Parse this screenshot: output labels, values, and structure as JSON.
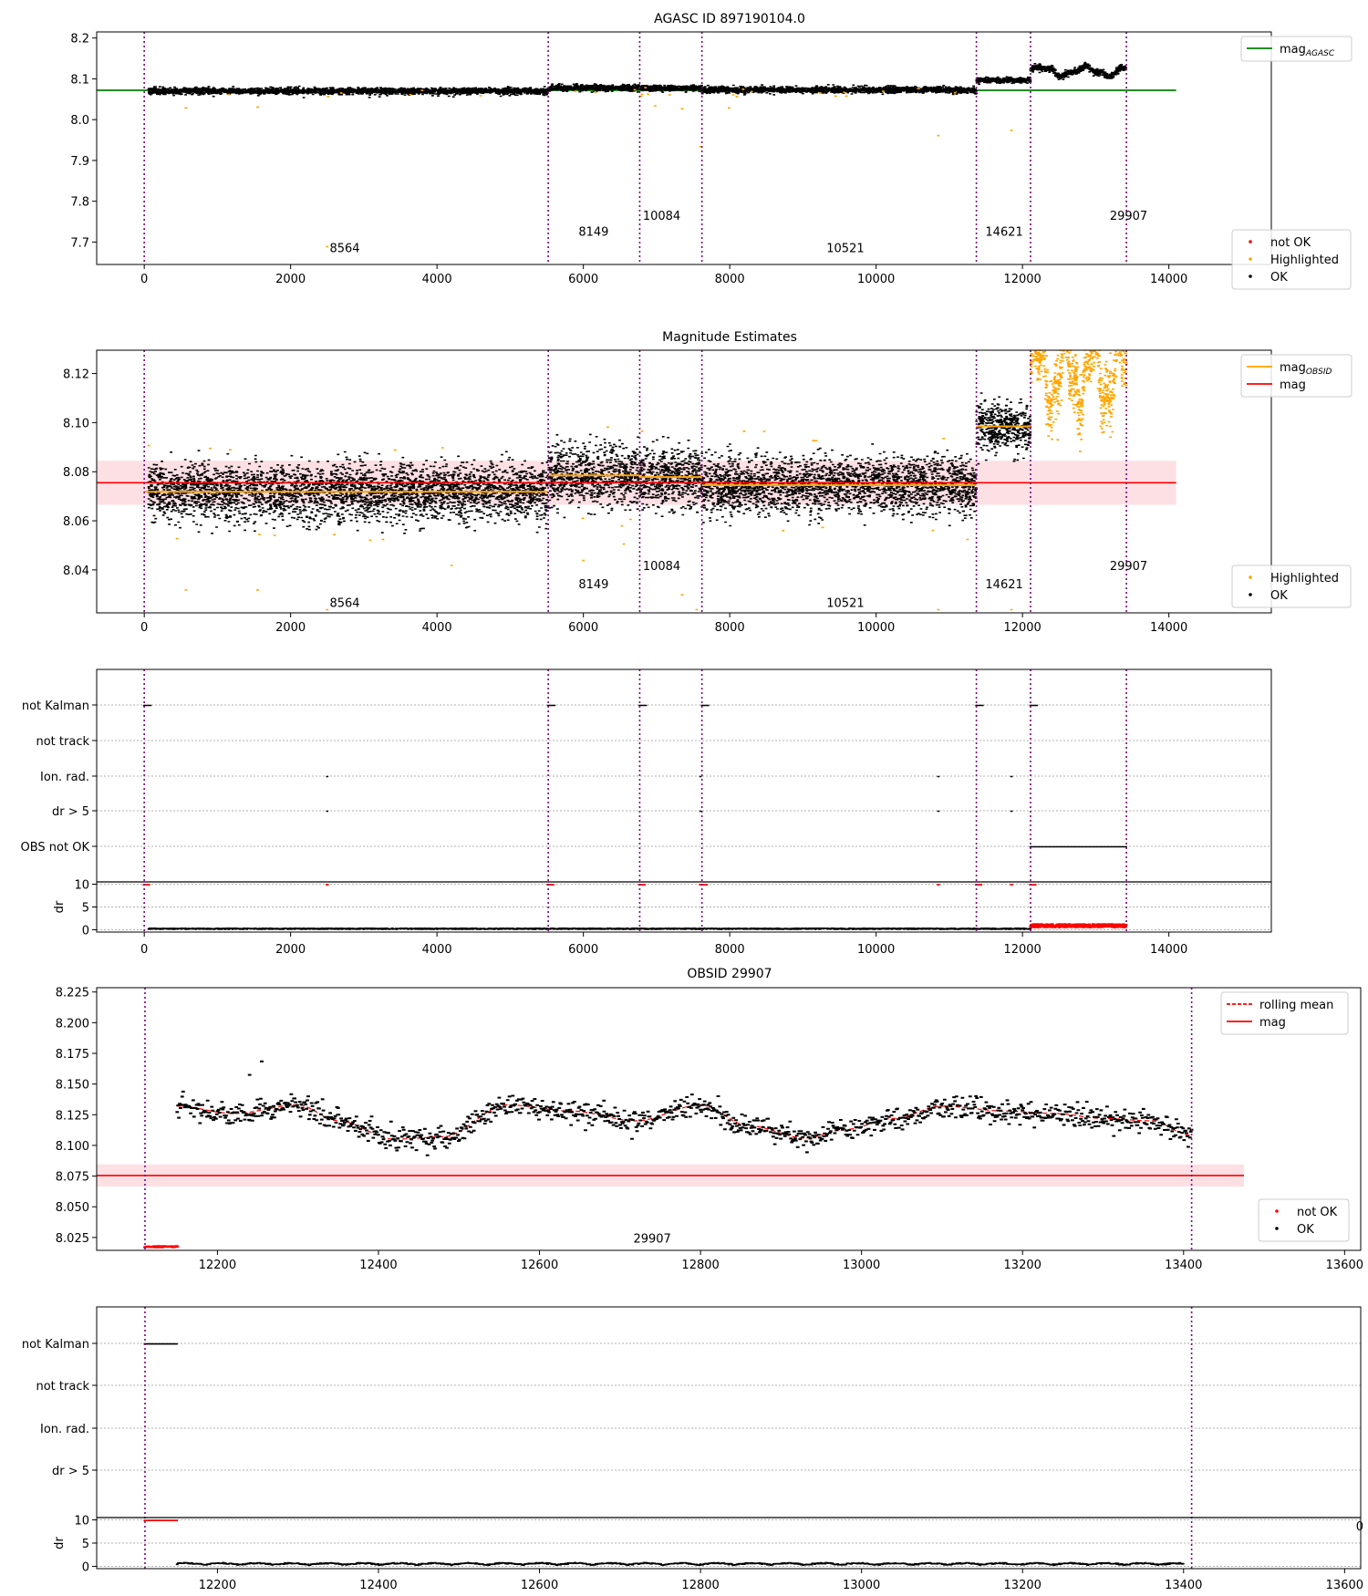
{
  "figure": {
    "panel1_title": "AGASC ID 897190104.0",
    "panel2_title": "Magnitude Estimates",
    "panel4_title": "OBSID 29907"
  },
  "colors": {
    "ok": "#000000",
    "not_ok": "#ff0000",
    "highlighted": "#ffa500",
    "agasc_line": "#008000",
    "mag_line": "#ff0000",
    "mag_band": "#fde0e4",
    "obsid_line": "#ffa500",
    "obsid_boundary": "#800080",
    "grid": "#b0b0b0"
  },
  "legends": {
    "p1": {
      "lines": [
        {
          "label": "mag",
          "sub": "AGASC",
          "color": "#008000"
        }
      ],
      "markers": [
        {
          "label": "not OK",
          "color": "#ff0000"
        },
        {
          "label": "Highlighted",
          "color": "#ffa500"
        },
        {
          "label": "OK",
          "color": "#000000"
        }
      ]
    },
    "p2": {
      "lines": [
        {
          "label": "mag",
          "sub": "OBSID",
          "color": "#ffa500"
        },
        {
          "label": "mag",
          "sub": "",
          "color": "#ff0000"
        }
      ],
      "markers": [
        {
          "label": "Highlighted",
          "color": "#ffa500"
        },
        {
          "label": "OK",
          "color": "#000000"
        }
      ]
    },
    "p4": {
      "lines": [
        {
          "label": "rolling mean",
          "sub": "",
          "color": "#ff0000",
          "dashed": true
        },
        {
          "label": "mag",
          "sub": "",
          "color": "#ff0000"
        }
      ],
      "markers": [
        {
          "label": "not OK",
          "color": "#ff0000"
        },
        {
          "label": "OK",
          "color": "#000000"
        }
      ]
    }
  },
  "chart_data": [
    {
      "id": "p1",
      "type": "scatter",
      "title": "AGASC ID 897190104.0",
      "xlim": [
        -650,
        15400
      ],
      "ylim": [
        7.645,
        8.215
      ],
      "xticks": [
        0,
        2000,
        4000,
        6000,
        8000,
        10000,
        12000,
        14000
      ],
      "yticks": [
        7.7,
        7.8,
        7.9,
        8.0,
        8.1,
        8.2
      ],
      "mag_agasc": 8.072,
      "mag_agasc_xrange": [
        -650,
        14100
      ],
      "obsid_boundaries": [
        0,
        5520,
        6770,
        7620,
        11370,
        12110,
        13420
      ],
      "obsids": [
        {
          "label": "8564",
          "x": 2740,
          "y": 7.675
        },
        {
          "label": "8149",
          "x": 6140,
          "y": 7.715
        },
        {
          "label": "10084",
          "x": 7070,
          "y": 7.755
        },
        {
          "label": "10521",
          "x": 9580,
          "y": 7.675
        },
        {
          "label": "14621",
          "x": 11750,
          "y": 7.715
        },
        {
          "label": "29907",
          "x": 13450,
          "y": 7.755
        }
      ],
      "segments": [
        {
          "x": [
            60,
            5520
          ],
          "mean": 8.071,
          "spread": 0.012
        },
        {
          "x": [
            5520,
            6770
          ],
          "mean": 8.079,
          "spread": 0.012
        },
        {
          "x": [
            6770,
            7620
          ],
          "mean": 8.078,
          "spread": 0.012
        },
        {
          "x": [
            7620,
            11370
          ],
          "mean": 8.074,
          "spread": 0.012
        },
        {
          "x": [
            11370,
            12110
          ],
          "mean": 8.098,
          "spread": 0.01
        },
        {
          "x": [
            12110,
            13420
          ],
          "mean": 8.12,
          "spread": 0.012,
          "wave": true
        }
      ],
      "highlighted_points": [
        [
          2500,
          7.69
        ],
        [
          7600,
          7.935
        ],
        [
          10850,
          7.962
        ],
        [
          11850,
          7.975
        ],
        [
          570,
          8.03
        ],
        [
          1550,
          8.032
        ],
        [
          6980,
          8.035
        ],
        [
          7350,
          8.028
        ],
        [
          7990,
          8.03
        ]
      ],
      "legend_position": "upper right / lower right"
    },
    {
      "id": "p2",
      "type": "scatter",
      "title": "Magnitude Estimates",
      "xlim": [
        -650,
        15400
      ],
      "ylim": [
        8.0225,
        8.1295
      ],
      "xticks": [
        0,
        2000,
        4000,
        6000,
        8000,
        10000,
        12000,
        14000
      ],
      "yticks": [
        8.04,
        8.06,
        8.08,
        8.1,
        8.12
      ],
      "mag": 8.0755,
      "mag_band": [
        8.0665,
        8.0845
      ],
      "mag_xrange": [
        -650,
        14100
      ],
      "mag_obsid": [
        {
          "x": [
            0,
            5520
          ],
          "value": 8.0718
        },
        {
          "x": [
            5520,
            6770
          ],
          "value": 8.0785
        },
        {
          "x": [
            6770,
            7620
          ],
          "value": 8.0778
        },
        {
          "x": [
            7620,
            11370
          ],
          "value": 8.0745
        },
        {
          "x": [
            11370,
            12110
          ],
          "value": 8.0985
        }
      ],
      "obsid_boundaries": [
        0,
        5520,
        6770,
        7620,
        11370,
        12110,
        13420
      ],
      "obsids": [
        {
          "label": "8564",
          "x": 2740,
          "y": 8.025
        },
        {
          "label": "8149",
          "x": 6140,
          "y": 8.0325
        },
        {
          "label": "10084",
          "x": 7070,
          "y": 8.04
        },
        {
          "label": "10521",
          "x": 9580,
          "y": 8.025
        },
        {
          "label": "14621",
          "x": 11750,
          "y": 8.0325
        },
        {
          "label": "29907",
          "x": 13450,
          "y": 8.04
        }
      ],
      "legend_position": "upper right / lower right"
    },
    {
      "id": "p3",
      "type": "scatter",
      "xlim": [
        -650,
        15400
      ],
      "xticks": [
        0,
        2000,
        4000,
        6000,
        8000,
        10000,
        12000,
        14000
      ],
      "flag_rows": [
        "not Kalman",
        "not track",
        "Ion. rad.",
        "dr > 5",
        "OBS not OK"
      ],
      "dr_ylabel": "dr",
      "dr_yticks": [
        0,
        5,
        10
      ],
      "dr_ylim": [
        -0.5,
        10.5
      ],
      "not_kalman_x": [
        0,
        5520,
        6770,
        7620,
        11370,
        12110
      ],
      "ion_rad_x": [
        2500,
        7600,
        10850,
        11850
      ],
      "dr5_x": [
        2500,
        7600,
        10850,
        11850
      ],
      "obs_not_ok_x": [
        12110,
        13420
      ]
    },
    {
      "id": "p4",
      "type": "scatter",
      "title": "OBSID 29907",
      "xlim": [
        12050,
        13620
      ],
      "ylim": [
        8.0145,
        8.2285
      ],
      "xticks": [
        12200,
        12400,
        12600,
        12800,
        13000,
        13200,
        13400,
        13600
      ],
      "yticks": [
        8.025,
        8.05,
        8.075,
        8.1,
        8.125,
        8.15,
        8.175,
        8.2,
        8.225
      ],
      "mag": 8.0755,
      "mag_band": [
        8.0665,
        8.0845
      ],
      "mag_xrange": [
        12050,
        13475
      ],
      "obsid_boundaries": [
        12110,
        13410
      ],
      "data_x": [
        12150,
        13410
      ],
      "not_ok_x": [
        12110,
        12150
      ],
      "not_ok_y": 8.018,
      "rolling_mean_anchors": [
        [
          12150,
          8.132
        ],
        [
          12220,
          8.126
        ],
        [
          12300,
          8.133
        ],
        [
          12350,
          8.12
        ],
        [
          12420,
          8.105
        ],
        [
          12480,
          8.107
        ],
        [
          12560,
          8.133
        ],
        [
          12640,
          8.128
        ],
        [
          12720,
          8.12
        ],
        [
          12800,
          8.133
        ],
        [
          12860,
          8.116
        ],
        [
          12930,
          8.106
        ],
        [
          12980,
          8.113
        ],
        [
          13040,
          8.122
        ],
        [
          13100,
          8.132
        ],
        [
          13180,
          8.128
        ],
        [
          13240,
          8.126
        ],
        [
          13300,
          8.122
        ],
        [
          13360,
          8.12
        ],
        [
          13410,
          8.108
        ]
      ],
      "obsid_label": {
        "label": "29907",
        "x": 12740,
        "y": 8.021
      },
      "legend_position": "upper right / lower right"
    },
    {
      "id": "p5",
      "type": "scatter",
      "xlim": [
        12050,
        13620
      ],
      "xticks": [
        12200,
        12400,
        12600,
        12800,
        13000,
        13200,
        13400,
        13600
      ],
      "flag_rows": [
        "not Kalman",
        "not track",
        "Ion. rad.",
        "dr > 5"
      ],
      "dr_ylabel": "dr",
      "dr_yticks": [
        0,
        5,
        10
      ],
      "dr_ylim": [
        -0.5,
        10.5
      ],
      "not_kalman_x": [
        12110,
        12150
      ],
      "obsid_boundaries": [
        12110,
        13410
      ],
      "stray_label": "0"
    }
  ]
}
